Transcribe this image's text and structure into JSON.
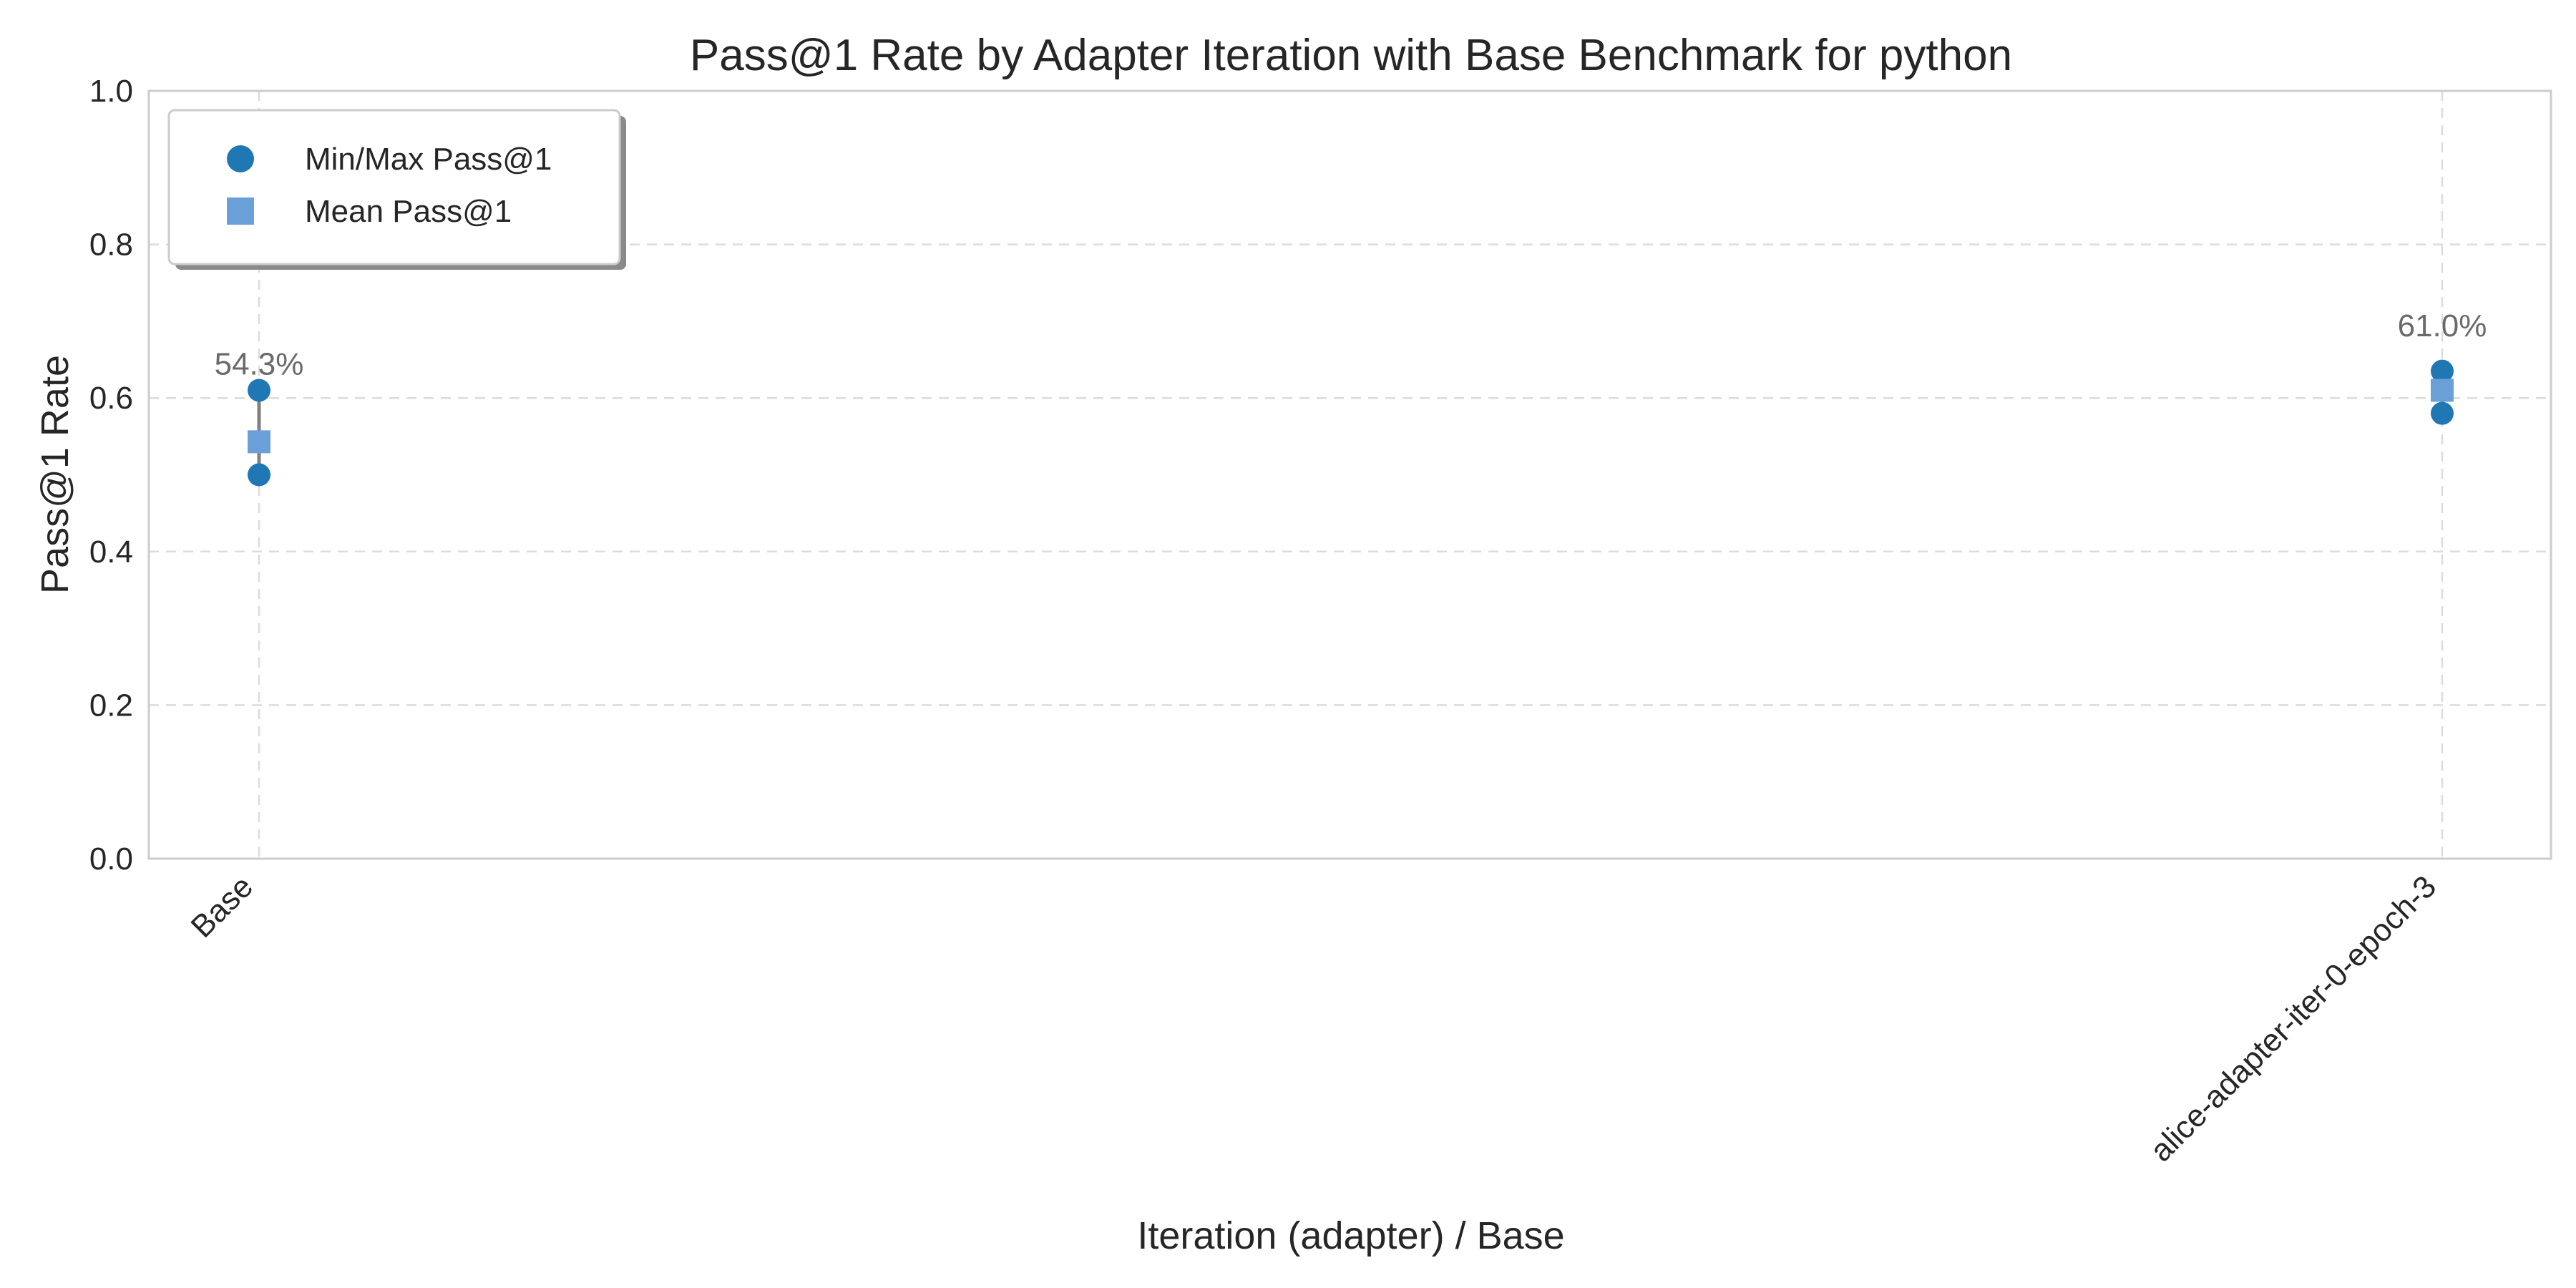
{
  "chart_data": {
    "type": "scatter",
    "title": "Pass@1 Rate by Adapter Iteration with Base Benchmark for python",
    "xlabel": "Iteration (adapter) / Base",
    "ylabel": "Pass@1 Rate",
    "ylim": [
      0,
      1
    ],
    "yticks": [
      0.0,
      0.2,
      0.4,
      0.6,
      0.8,
      1.0
    ],
    "ytick_labels": [
      "0.0",
      "0.2",
      "0.4",
      "0.6",
      "0.8",
      "1.0"
    ],
    "categories": [
      "Base",
      "alice-adapter-iter-0-epoch-3"
    ],
    "grid": true,
    "legend_position": "top-left",
    "series": [
      {
        "name": "Min/Max Pass@1",
        "marker": "circle",
        "color": "#1f77b4",
        "min": [
          0.5,
          0.58
        ],
        "max": [
          0.61,
          0.635
        ]
      },
      {
        "name": "Mean Pass@1",
        "marker": "square",
        "color": "#6a9fd8",
        "values": [
          0.543,
          0.61
        ]
      }
    ],
    "data_labels": [
      "54.3%",
      "61.0%"
    ],
    "range_line_color": "#808080"
  }
}
